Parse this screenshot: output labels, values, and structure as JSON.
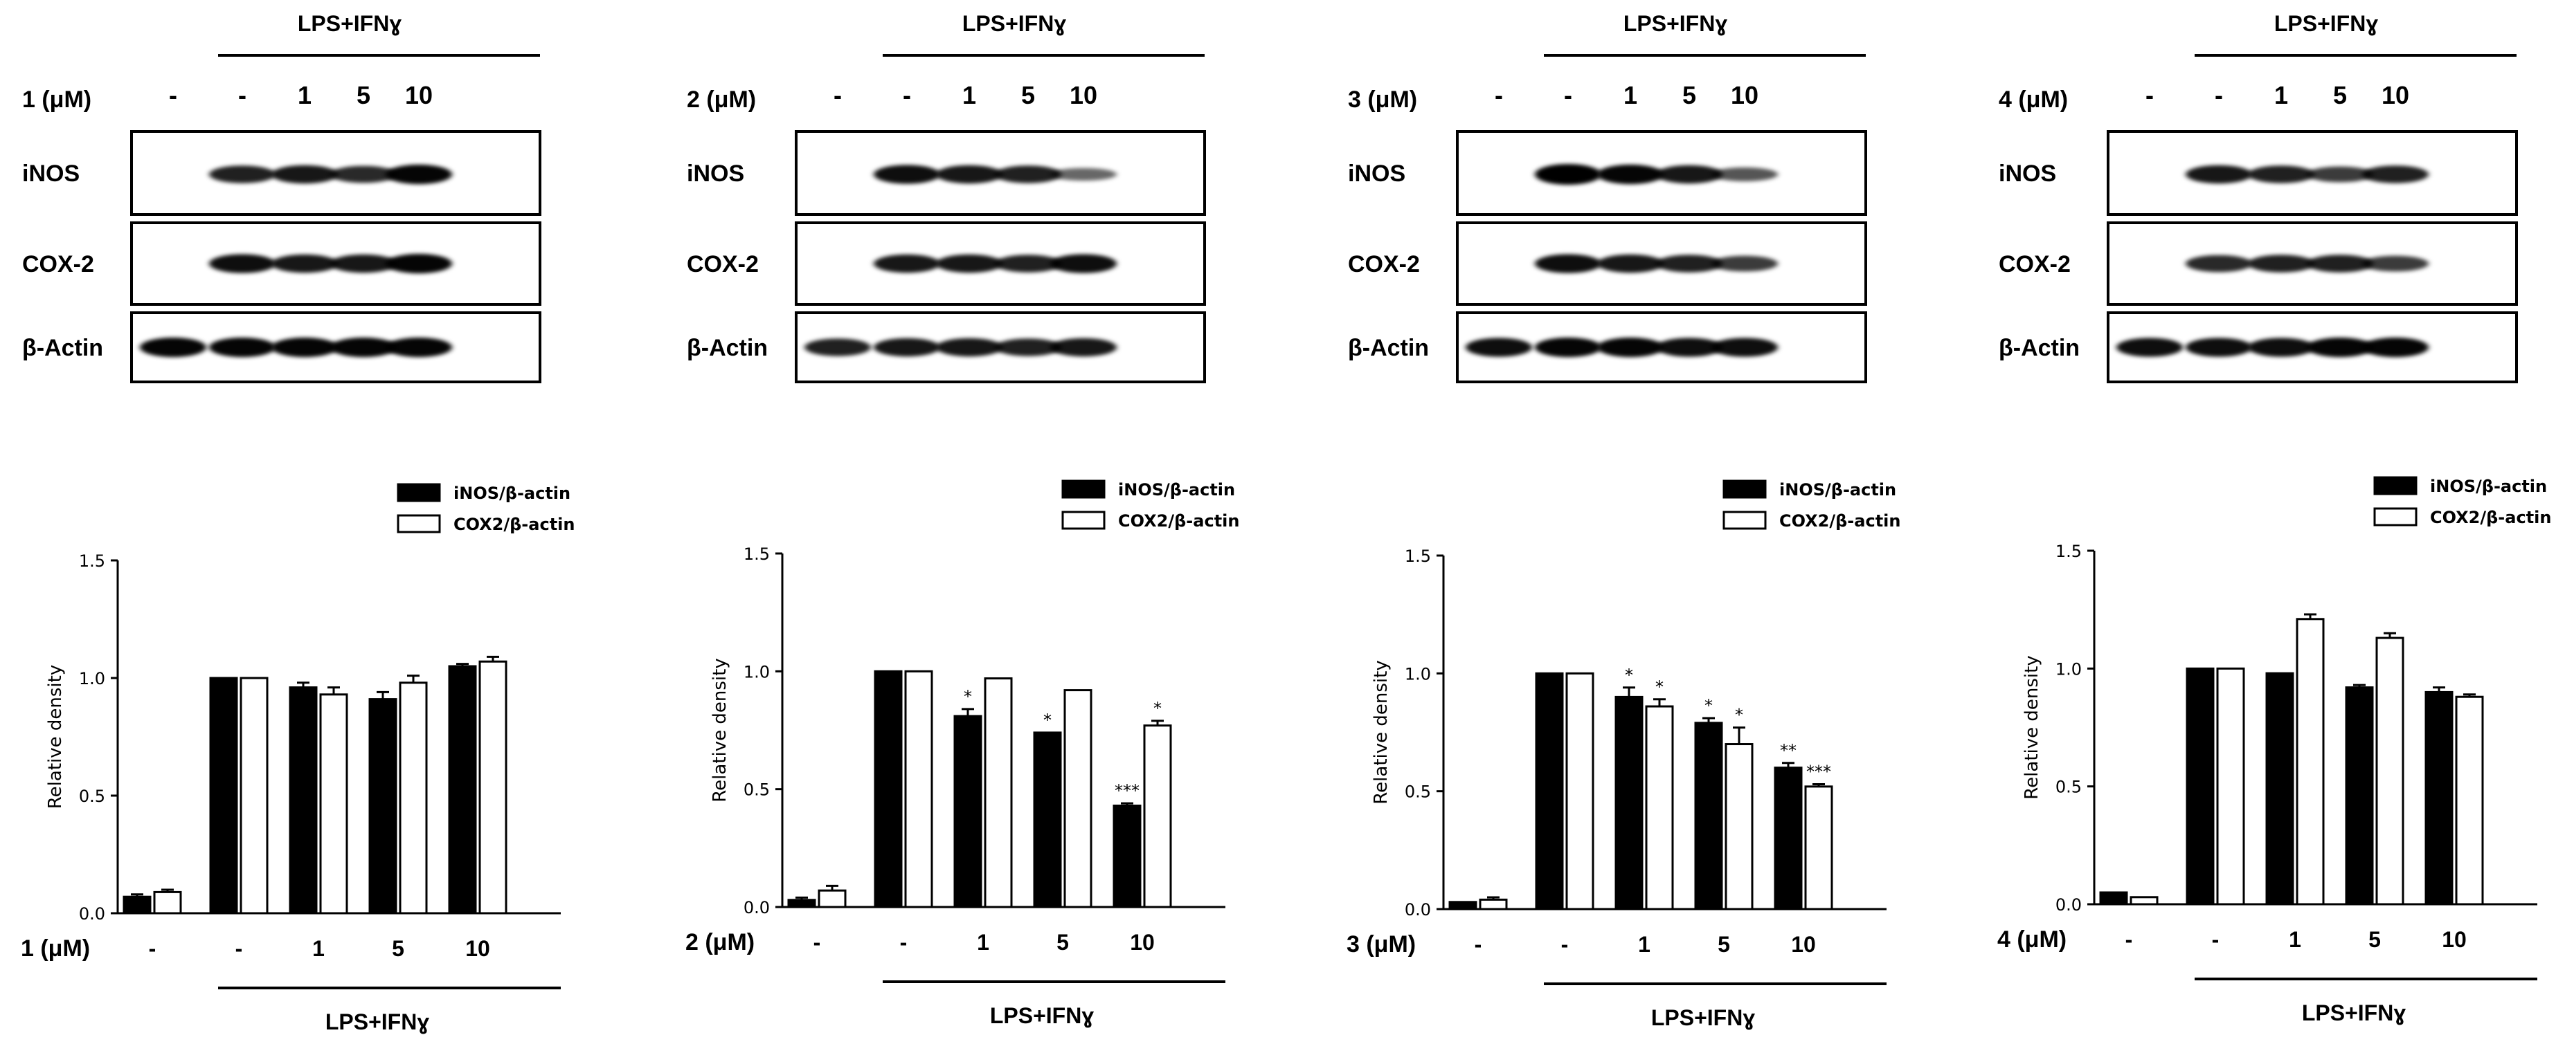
{
  "treatment_label": "LPS+IFNɣ",
  "blot_rows": [
    "iNOS",
    "COX-2",
    "β-Actin"
  ],
  "legend": [
    "iNOS/β-actin",
    "COX2/β-actin"
  ],
  "ylabel": "Relative density",
  "yticks": [
    "0.0",
    "0.5",
    "1.0",
    "1.5"
  ],
  "dose_ticks": [
    "-",
    "-",
    "1",
    "5",
    "10"
  ],
  "colors": {
    "inos": "#000000",
    "cox2": "#ffffff",
    "stroke": "#000000"
  },
  "panels": [
    {
      "compound_label": "1 (μM)",
      "blot_intensity": {
        "iNOS": [
          0,
          0.75,
          0.8,
          0.7,
          0.9
        ],
        "COX-2": [
          0,
          0.85,
          0.8,
          0.8,
          0.9
        ],
        "β-Actin": [
          0.9,
          0.9,
          0.9,
          0.9,
          0.9
        ]
      },
      "chart_data": {
        "type": "bar",
        "categories": [
          "-",
          "-",
          "1",
          "5",
          "10"
        ],
        "series": [
          {
            "name": "iNOS/β-actin",
            "values": [
              0.07,
              1.0,
              0.96,
              0.91,
              1.05
            ],
            "errors": [
              0.01,
              0.0,
              0.02,
              0.03,
              0.01
            ],
            "sig": [
              "",
              "",
              "",
              "",
              ""
            ]
          },
          {
            "name": "COX2/β-actin",
            "values": [
              0.09,
              1.0,
              0.93,
              0.98,
              1.07
            ],
            "errors": [
              0.01,
              0.0,
              0.03,
              0.03,
              0.02
            ],
            "sig": [
              "",
              "",
              "",
              "",
              ""
            ]
          }
        ],
        "xlabel": "1 (μM)",
        "ylabel": "Relative density",
        "ylim": [
          0,
          1.5
        ]
      }
    },
    {
      "compound_label": "2 (μM)",
      "blot_intensity": {
        "iNOS": [
          0,
          0.85,
          0.8,
          0.75,
          0.35
        ],
        "COX-2": [
          0,
          0.8,
          0.8,
          0.75,
          0.85
        ],
        "β-Actin": [
          0.75,
          0.8,
          0.8,
          0.75,
          0.8
        ]
      },
      "chart_data": {
        "type": "bar",
        "categories": [
          "-",
          "-",
          "1",
          "5",
          "10"
        ],
        "series": [
          {
            "name": "iNOS/β-actin",
            "values": [
              0.03,
              1.0,
              0.81,
              0.74,
              0.43
            ],
            "errors": [
              0.01,
              0.0,
              0.03,
              0.0,
              0.01
            ],
            "sig": [
              "",
              "",
              "*",
              "*",
              "***"
            ]
          },
          {
            "name": "COX2/β-actin",
            "values": [
              0.07,
              1.0,
              0.97,
              0.92,
              0.77
            ],
            "errors": [
              0.02,
              0.0,
              0.0,
              0.0,
              0.02
            ],
            "sig": [
              "",
              "",
              "",
              "",
              "*"
            ]
          }
        ],
        "xlabel": "2 (μM)",
        "ylabel": "Relative density",
        "ylim": [
          0,
          1.5
        ]
      }
    },
    {
      "compound_label": "3 (μM)",
      "blot_intensity": {
        "iNOS": [
          0,
          1.0,
          0.9,
          0.8,
          0.45
        ],
        "COX-2": [
          0,
          0.85,
          0.8,
          0.75,
          0.6
        ],
        "β-Actin": [
          0.85,
          0.9,
          0.9,
          0.85,
          0.85
        ]
      },
      "chart_data": {
        "type": "bar",
        "categories": [
          "-",
          "-",
          "1",
          "5",
          "10"
        ],
        "series": [
          {
            "name": "iNOS/β-actin",
            "values": [
              0.03,
              1.0,
              0.9,
              0.79,
              0.6
            ],
            "errors": [
              0.0,
              0.0,
              0.04,
              0.02,
              0.02
            ],
            "sig": [
              "",
              "",
              "*",
              "*",
              "**"
            ]
          },
          {
            "name": "COX2/β-actin",
            "values": [
              0.04,
              1.0,
              0.86,
              0.7,
              0.52
            ],
            "errors": [
              0.01,
              0.0,
              0.03,
              0.07,
              0.01
            ],
            "sig": [
              "",
              "",
              "*",
              "*",
              "***"
            ]
          }
        ],
        "xlabel": "3 (μM)",
        "ylabel": "Relative density",
        "ylim": [
          0,
          1.5
        ]
      }
    },
    {
      "compound_label": "4 (μM)",
      "blot_intensity": {
        "iNOS": [
          0,
          0.8,
          0.75,
          0.6,
          0.75
        ],
        "COX-2": [
          0,
          0.7,
          0.75,
          0.75,
          0.6
        ],
        "β-Actin": [
          0.85,
          0.85,
          0.85,
          0.9,
          0.9
        ]
      },
      "chart_data": {
        "type": "bar",
        "categories": [
          "-",
          "-",
          "1",
          "5",
          "10"
        ],
        "series": [
          {
            "name": "iNOS/β-actin",
            "values": [
              0.05,
              1.0,
              0.98,
              0.92,
              0.9
            ],
            "errors": [
              0.0,
              0.0,
              0.0,
              0.01,
              0.02
            ],
            "sig": [
              "",
              "",
              "",
              "",
              ""
            ]
          },
          {
            "name": "COX2/β-actin",
            "values": [
              0.03,
              1.0,
              1.21,
              1.13,
              0.88
            ],
            "errors": [
              0.0,
              0.0,
              0.02,
              0.02,
              0.01
            ],
            "sig": [
              "",
              "",
              "",
              "",
              ""
            ]
          }
        ],
        "xlabel": "4 (μM)",
        "ylabel": "Relative density",
        "ylim": [
          0,
          1.5
        ]
      }
    }
  ]
}
